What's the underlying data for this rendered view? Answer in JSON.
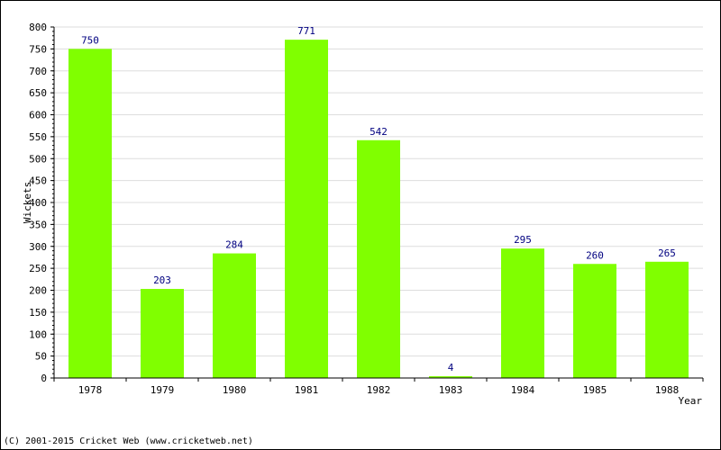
{
  "chart_data": {
    "type": "bar",
    "title": "",
    "xlabel": "Year",
    "ylabel": "Wickets",
    "categories": [
      "1978",
      "1979",
      "1980",
      "1981",
      "1982",
      "1983",
      "1984",
      "1985",
      "1988"
    ],
    "values": [
      750,
      203,
      284,
      771,
      542,
      4,
      295,
      260,
      265
    ],
    "ylim": [
      0,
      800
    ],
    "ytick_step": 50,
    "grid": true,
    "data_labels": true,
    "bar_color": "#80ff00",
    "label_color": "#000080",
    "grid_color": "#dddddd"
  },
  "footer": {
    "copyright": "(C) 2001-2015 Cricket Web (www.cricketweb.net)"
  }
}
